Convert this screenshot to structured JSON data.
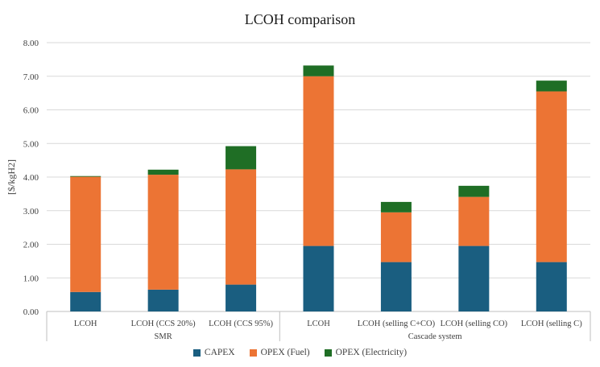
{
  "chart_data": {
    "type": "bar",
    "stacked": true,
    "title": "LCOH comparison",
    "ylabel": "[$/kgH2]",
    "ylim": [
      0,
      8
    ],
    "yticks": [
      "0.00",
      "1.00",
      "2.00",
      "3.00",
      "4.00",
      "5.00",
      "6.00",
      "7.00",
      "8.00"
    ],
    "categories": [
      "LCOH",
      "LCOH (CCS 20%)",
      "LCOH (CCS 95%)",
      "LCOH",
      "LCOH (selling C+CO)",
      "LCOH (selling CO)",
      "LCOH (selling C)"
    ],
    "groups": [
      {
        "label": "SMR",
        "count": 3
      },
      {
        "label": "Cascade system",
        "count": 4
      }
    ],
    "series": [
      {
        "name": "CAPEX",
        "color": "#1a5e80",
        "values": [
          0.58,
          0.65,
          0.8,
          1.95,
          1.47,
          1.95,
          1.47
        ]
      },
      {
        "name": "OPEX (Fuel)",
        "color": "#ec7434",
        "values": [
          3.43,
          3.42,
          3.43,
          5.05,
          1.48,
          1.46,
          5.08
        ]
      },
      {
        "name": "OPEX (Electricity)",
        "color": "#1f6e25",
        "values": [
          0.02,
          0.15,
          0.69,
          0.32,
          0.31,
          0.33,
          0.32
        ]
      }
    ],
    "grid": true,
    "legend": "bottom"
  }
}
